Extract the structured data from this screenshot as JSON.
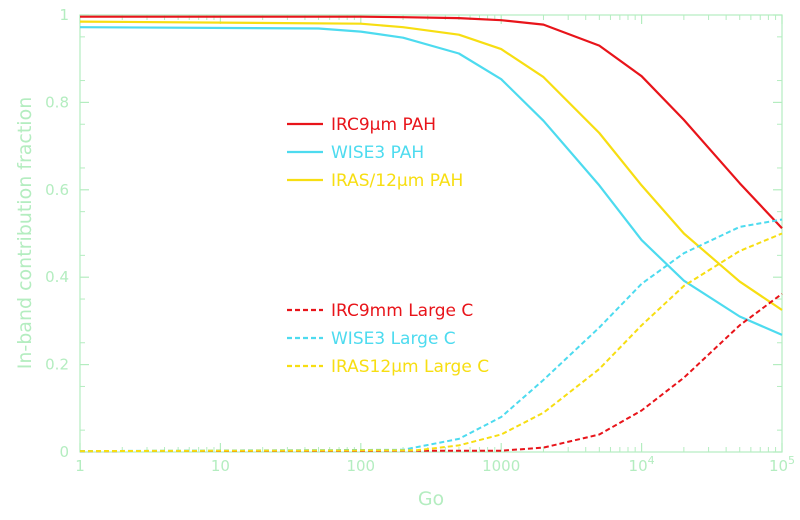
{
  "chart_data": {
    "type": "line",
    "title": "",
    "xlabel": "Go",
    "ylabel": "In-band contribution fraction",
    "xscale": "log",
    "xlim": [
      1,
      100000
    ],
    "ylim": [
      0,
      1
    ],
    "grid": false,
    "x_ticks": [
      {
        "value": 1,
        "label": "1"
      },
      {
        "value": 10,
        "label": "10"
      },
      {
        "value": 100,
        "label": "100"
      },
      {
        "value": 1000,
        "label": "1000"
      },
      {
        "value": 10000,
        "label": "10",
        "exp": "4"
      },
      {
        "value": 100000,
        "label": "10",
        "exp": "5"
      }
    ],
    "y_ticks": [
      {
        "value": 0,
        "label": "0"
      },
      {
        "value": 0.2,
        "label": "0.2"
      },
      {
        "value": 0.4,
        "label": "0.4"
      },
      {
        "value": 0.6,
        "label": "0.6"
      },
      {
        "value": 0.8,
        "label": "0.8"
      },
      {
        "value": 1,
        "label": "1"
      }
    ],
    "series": [
      {
        "name": "IRC9µm PAH",
        "color": "#e8141a",
        "dash": false,
        "points": [
          [
            1,
            0.996
          ],
          [
            100,
            0.996
          ],
          [
            200,
            0.995
          ],
          [
            500,
            0.993
          ],
          [
            1000,
            0.988
          ],
          [
            2000,
            0.978
          ],
          [
            5000,
            0.93
          ],
          [
            10000,
            0.86
          ],
          [
            20000,
            0.76
          ],
          [
            50000,
            0.615
          ],
          [
            100000,
            0.512
          ]
        ]
      },
      {
        "name": "WISE3 PAH",
        "color": "#4ddbef",
        "dash": false,
        "points": [
          [
            1,
            0.972
          ],
          [
            50,
            0.969
          ],
          [
            100,
            0.962
          ],
          [
            200,
            0.948
          ],
          [
            500,
            0.912
          ],
          [
            1000,
            0.853
          ],
          [
            2000,
            0.758
          ],
          [
            5000,
            0.61
          ],
          [
            10000,
            0.485
          ],
          [
            20000,
            0.392
          ],
          [
            50000,
            0.31
          ],
          [
            100000,
            0.268
          ]
        ]
      },
      {
        "name": "IRAS/12µm PAH",
        "color": "#f7de12",
        "dash": false,
        "points": [
          [
            1,
            0.985
          ],
          [
            100,
            0.98
          ],
          [
            200,
            0.972
          ],
          [
            500,
            0.955
          ],
          [
            1000,
            0.922
          ],
          [
            2000,
            0.858
          ],
          [
            5000,
            0.73
          ],
          [
            10000,
            0.61
          ],
          [
            20000,
            0.5
          ],
          [
            50000,
            0.39
          ],
          [
            100000,
            0.325
          ]
        ]
      },
      {
        "name": "IRC9mm Large C",
        "color": "#e8141a",
        "dash": true,
        "points": [
          [
            1,
            0.002
          ],
          [
            1000,
            0.003
          ],
          [
            2000,
            0.01
          ],
          [
            5000,
            0.04
          ],
          [
            10000,
            0.095
          ],
          [
            20000,
            0.17
          ],
          [
            50000,
            0.29
          ],
          [
            100000,
            0.362
          ]
        ]
      },
      {
        "name": "WISE3 Large C",
        "color": "#4ddbef",
        "dash": true,
        "points": [
          [
            1,
            0.002
          ],
          [
            200,
            0.005
          ],
          [
            500,
            0.03
          ],
          [
            1000,
            0.08
          ],
          [
            2000,
            0.165
          ],
          [
            5000,
            0.285
          ],
          [
            10000,
            0.385
          ],
          [
            20000,
            0.455
          ],
          [
            50000,
            0.515
          ],
          [
            100000,
            0.532
          ]
        ]
      },
      {
        "name": "IRAS12µm Large C",
        "color": "#f7de12",
        "dash": true,
        "points": [
          [
            1,
            0.002
          ],
          [
            250,
            0.004
          ],
          [
            500,
            0.015
          ],
          [
            1000,
            0.04
          ],
          [
            2000,
            0.09
          ],
          [
            5000,
            0.19
          ],
          [
            10000,
            0.29
          ],
          [
            20000,
            0.38
          ],
          [
            50000,
            0.46
          ],
          [
            100000,
            0.5
          ]
        ]
      }
    ]
  }
}
